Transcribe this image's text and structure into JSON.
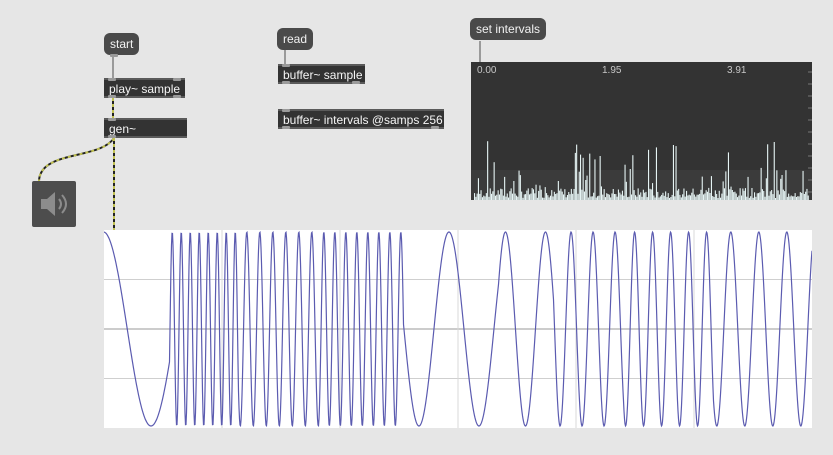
{
  "messages": {
    "start": "start",
    "read": "read",
    "set_intervals": "set intervals"
  },
  "objects": {
    "play_sample": "play~ sample",
    "gen": "gen~",
    "buffer_sample": "buffer~ sample",
    "buffer_intervals": "buffer~ intervals @samps 256"
  },
  "buffer_view": {
    "axis_labels": [
      "0.00",
      "1.95",
      "3.91"
    ]
  },
  "icons": {
    "speaker": "speaker-icon"
  },
  "colors": {
    "waveform": "#5b5bb0",
    "patch_cord_signal": "#c2c252",
    "patch_cord_message": "#9a9a9a",
    "buffer_bars": "#e6f4f4"
  }
}
